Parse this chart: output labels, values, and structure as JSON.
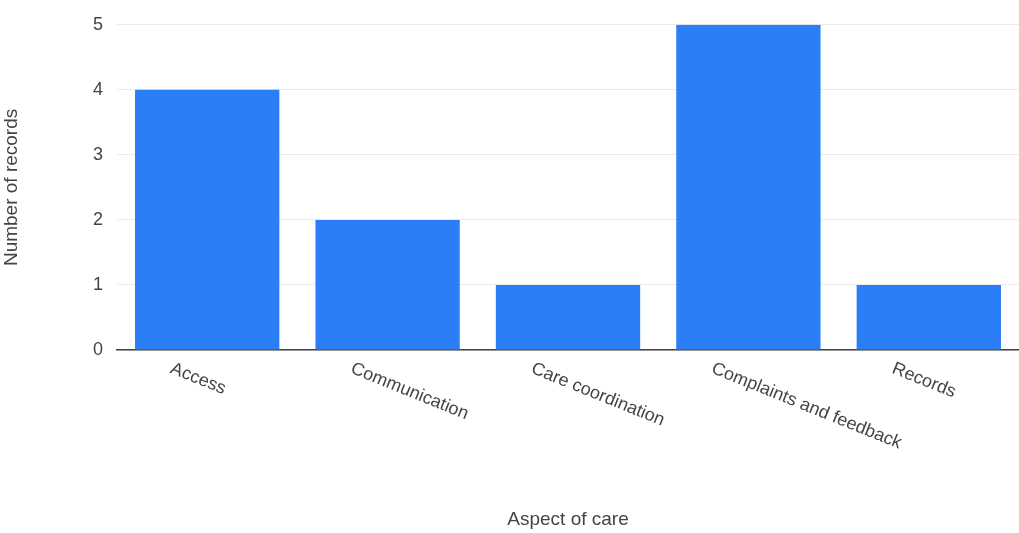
{
  "chart_data": {
    "type": "bar",
    "xlabel": "Aspect of care",
    "ylabel": "Number of records",
    "categories": [
      "Access",
      "Communication",
      "Care coordination",
      "Complaints and feedback",
      "Records"
    ],
    "values": [
      4,
      2,
      1,
      5,
      1
    ],
    "color": "#2b7ef6",
    "ylim": [
      0,
      5
    ],
    "yticks": [
      0,
      1,
      2,
      3,
      4,
      5
    ],
    "grid": "y"
  }
}
